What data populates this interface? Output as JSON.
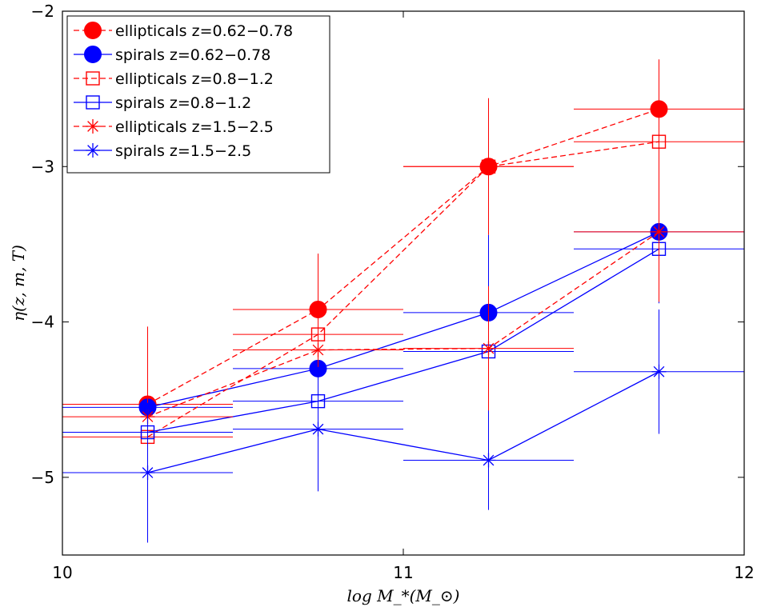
{
  "chart_data": {
    "type": "scatter",
    "xlabel": "log M_*(M_⊙)",
    "ylabel": "η(z, m, T)",
    "xlim": [
      10,
      12
    ],
    "ylim": [
      -5.5,
      -2
    ],
    "xticks": [
      "10",
      "11",
      "12"
    ],
    "yticks": [
      "−2",
      "−3",
      "−4",
      "−5"
    ],
    "xtick_values": [
      10,
      11,
      12
    ],
    "ytick_values": [
      -2,
      -3,
      -4,
      -5
    ],
    "grid": false,
    "legend_position": "top-left",
    "series": [
      {
        "name": "ellipticals z=0.62−0.78",
        "color": "#ff0000",
        "marker": "filled-circle",
        "line": "dashed",
        "points": [
          {
            "x": 10.25,
            "y": -4.53,
            "xerr": 0.25,
            "yerr": 0.5
          },
          {
            "x": 10.75,
            "y": -3.92,
            "xerr": 0.25,
            "yerr": 0.36
          },
          {
            "x": 11.25,
            "y": -3.0,
            "xerr": 0.25,
            "yerr": 0.44
          },
          {
            "x": 11.75,
            "y": -2.63,
            "xerr": 0.25,
            "yerr": 0.32
          }
        ]
      },
      {
        "name": "spirals z=0.62−0.78",
        "color": "#0000ff",
        "marker": "filled-circle",
        "line": "solid",
        "points": [
          {
            "x": 10.25,
            "y": -4.55,
            "xerr": 0.25,
            "yerr": 0.4
          },
          {
            "x": 10.75,
            "y": -4.3,
            "xerr": 0.25,
            "yerr": 0.3
          },
          {
            "x": 11.25,
            "y": -3.94,
            "xerr": 0.25,
            "yerr": 0.5
          },
          {
            "x": 11.75,
            "y": -3.42,
            "xerr": 0.25,
            "yerr": 0.3
          }
        ]
      },
      {
        "name": "ellipticals z=0.8−1.2",
        "color": "#ff0000",
        "marker": "open-square",
        "line": "dashed",
        "points": [
          {
            "x": 10.25,
            "y": -4.74,
            "xerr": 0.25,
            "yerr": 0.3
          },
          {
            "x": 10.75,
            "y": -4.08,
            "xerr": 0.25,
            "yerr": 0.34
          },
          {
            "x": 11.25,
            "y": -3.0,
            "xerr": 0.25,
            "yerr": 0.4
          },
          {
            "x": 11.75,
            "y": -2.84,
            "xerr": 0.25,
            "yerr": 0.34
          }
        ]
      },
      {
        "name": "spirals z=0.8−1.2",
        "color": "#0000ff",
        "marker": "open-square",
        "line": "solid",
        "points": [
          {
            "x": 10.25,
            "y": -4.71,
            "xerr": 0.25,
            "yerr": 0.36
          },
          {
            "x": 10.75,
            "y": -4.51,
            "xerr": 0.25,
            "yerr": 0.3
          },
          {
            "x": 11.25,
            "y": -4.19,
            "xerr": 0.25,
            "yerr": 0.45
          },
          {
            "x": 11.75,
            "y": -3.53,
            "xerr": 0.25,
            "yerr": 0.35
          }
        ]
      },
      {
        "name": "ellipticals z=1.5−2.5",
        "color": "#ff0000",
        "marker": "asterisk",
        "line": "dashed",
        "points": [
          {
            "x": 10.25,
            "y": -4.61,
            "xerr": 0.25,
            "yerr": 0.48
          },
          {
            "x": 10.75,
            "y": -4.18,
            "xerr": 0.25,
            "yerr": 0.38
          },
          {
            "x": 11.25,
            "y": -4.17,
            "xerr": 0.25,
            "yerr": 0.4
          },
          {
            "x": 11.75,
            "y": -3.42,
            "xerr": 0.25,
            "yerr": 0.45
          }
        ]
      },
      {
        "name": "spirals z=1.5−2.5",
        "color": "#0000ff",
        "marker": "asterisk",
        "line": "solid",
        "points": [
          {
            "x": 10.25,
            "y": -4.97,
            "xerr": 0.25,
            "yerr": 0.45
          },
          {
            "x": 10.75,
            "y": -4.69,
            "xerr": 0.25,
            "yerr": 0.4
          },
          {
            "x": 11.25,
            "y": -4.89,
            "xerr": 0.25,
            "yerr": 0.32
          },
          {
            "x": 11.75,
            "y": -4.32,
            "xerr": 0.25,
            "yerr": 0.4
          }
        ]
      }
    ]
  }
}
